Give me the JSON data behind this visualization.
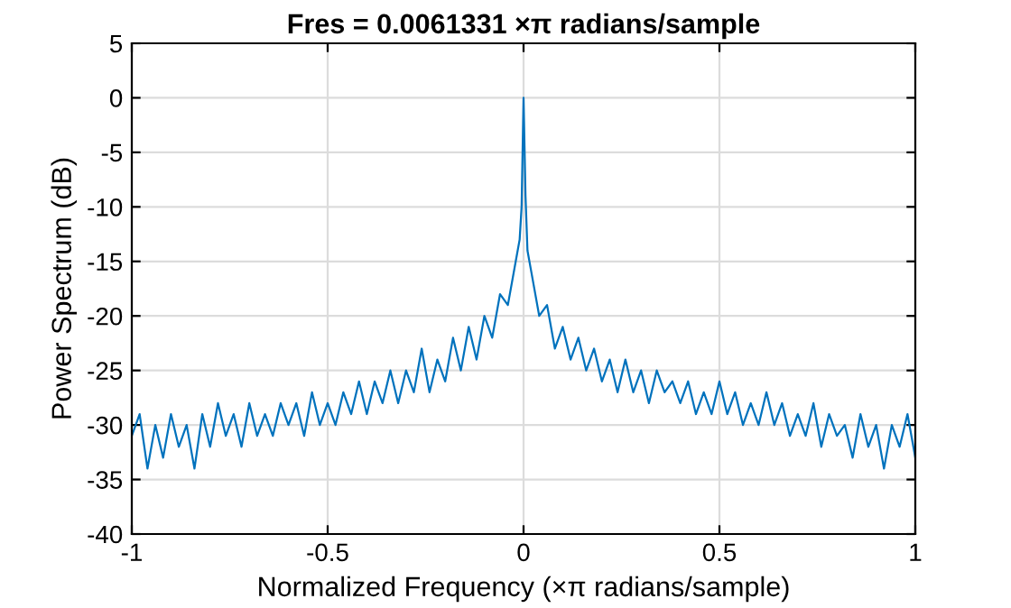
{
  "chart_data": {
    "type": "line",
    "title": "Fres = 0.0061331 ×π radians/sample",
    "xlabel": "Normalized Frequency (×π radians/sample)",
    "ylabel": "Power Spectrum (dB)",
    "series": [
      {
        "color": "#0072bd",
        "x": [
          -1.0,
          -0.98,
          -0.96,
          -0.94,
          -0.92,
          -0.9,
          -0.88,
          -0.86,
          -0.84,
          -0.82,
          -0.8,
          -0.78,
          -0.76,
          -0.74,
          -0.72,
          -0.7,
          -0.68,
          -0.66,
          -0.64,
          -0.62,
          -0.6,
          -0.58,
          -0.56,
          -0.54,
          -0.52,
          -0.5,
          -0.48,
          -0.46,
          -0.44,
          -0.42,
          -0.4,
          -0.38,
          -0.36,
          -0.34,
          -0.32,
          -0.3,
          -0.28,
          -0.26,
          -0.24,
          -0.22,
          -0.2,
          -0.18,
          -0.16,
          -0.14,
          -0.12,
          -0.1,
          -0.08,
          -0.06,
          -0.04,
          -0.02,
          -0.01,
          -0.005,
          0,
          0.005,
          0.01,
          0.02,
          0.04,
          0.06,
          0.08,
          0.1,
          0.12,
          0.14,
          0.16,
          0.18,
          0.2,
          0.22,
          0.24,
          0.26,
          0.28,
          0.3,
          0.32,
          0.34,
          0.36,
          0.38,
          0.4,
          0.42,
          0.44,
          0.46,
          0.48,
          0.5,
          0.52,
          0.54,
          0.56,
          0.58,
          0.6,
          0.62,
          0.64,
          0.66,
          0.68,
          0.7,
          0.72,
          0.74,
          0.76,
          0.78,
          0.8,
          0.82,
          0.84,
          0.86,
          0.88,
          0.9,
          0.92,
          0.94,
          0.96,
          0.98,
          1.0
        ],
        "values": [
          -31,
          -29,
          -34,
          -30,
          -33,
          -29,
          -32,
          -30,
          -34,
          -29,
          -32,
          -28,
          -31,
          -29,
          -32,
          -28,
          -31,
          -29,
          -31,
          -28,
          -30,
          -28,
          -31,
          -27,
          -30,
          -28,
          -30,
          -27,
          -29,
          -26,
          -29,
          -26,
          -28,
          -25,
          -28,
          -25,
          -27,
          -23,
          -27,
          -24,
          -26,
          -22,
          -25,
          -21,
          -24,
          -20,
          -22,
          -18,
          -19,
          -15,
          -13,
          -10,
          0,
          -9,
          -14,
          -16,
          -20,
          -19,
          -23,
          -21,
          -24,
          -22,
          -25,
          -23,
          -26,
          -24,
          -27,
          -24,
          -27,
          -25,
          -28,
          -25,
          -27,
          -26,
          -28,
          -26,
          -29,
          -27,
          -29,
          -26,
          -29,
          -27,
          -30,
          -28,
          -30,
          -27,
          -30,
          -28,
          -31,
          -29,
          -31,
          -28,
          -32,
          -29,
          -31,
          -30,
          -33,
          -29,
          -32,
          -30,
          -34,
          -30,
          -32,
          -29,
          -33
        ]
      }
    ],
    "xlim": [
      -1,
      1
    ],
    "xticks": [
      -1,
      -0.5,
      0,
      0.5,
      1
    ],
    "ylim": [
      -40,
      5
    ],
    "yticks": [
      -40,
      -35,
      -30,
      -25,
      -20,
      -15,
      -10,
      -5,
      0,
      5
    ],
    "grid": true,
    "line_style": "solid",
    "marker": "none"
  }
}
